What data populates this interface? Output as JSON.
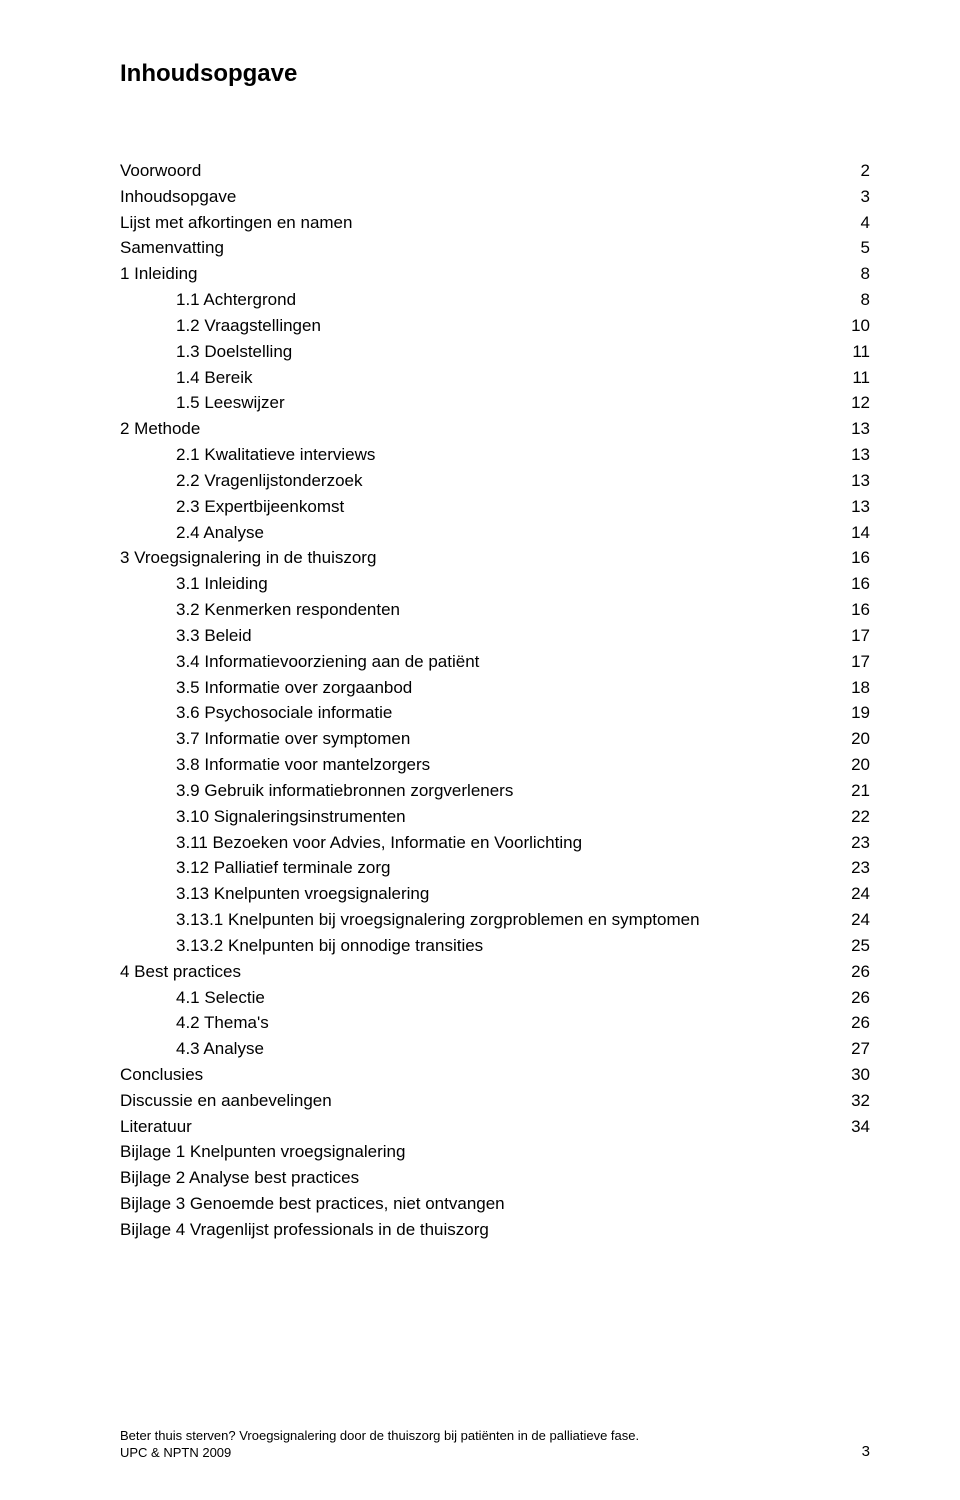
{
  "title": "Inhoudsopgave",
  "toc": [
    {
      "level": 1,
      "label": "Voorwoord",
      "page": "2"
    },
    {
      "level": 1,
      "label": "Inhoudsopgave",
      "page": "3"
    },
    {
      "level": 1,
      "label": "Lijst met afkortingen en namen",
      "page": "4"
    },
    {
      "level": 1,
      "label": "Samenvatting",
      "page": "5"
    },
    {
      "level": 1,
      "label": "1 Inleiding",
      "page": "8"
    },
    {
      "level": 2,
      "label": "1.1 Achtergrond",
      "page": "8"
    },
    {
      "level": 2,
      "label": "1.2 Vraagstellingen",
      "page": "10"
    },
    {
      "level": 2,
      "label": "1.3 Doelstelling",
      "page": "11"
    },
    {
      "level": 2,
      "label": "1.4 Bereik",
      "page": "11"
    },
    {
      "level": 2,
      "label": "1.5 Leeswijzer",
      "page": "12"
    },
    {
      "level": 1,
      "label": "2 Methode",
      "page": "13"
    },
    {
      "level": 2,
      "label": "2.1 Kwalitatieve interviews",
      "page": "13"
    },
    {
      "level": 2,
      "label": "2.2 Vragenlijstonderzoek",
      "page": "13"
    },
    {
      "level": 2,
      "label": "2.3 Expertbijeenkomst",
      "page": "13"
    },
    {
      "level": 2,
      "label": "2.4 Analyse",
      "page": "14"
    },
    {
      "level": 1,
      "label": "3 Vroegsignalering in de thuiszorg",
      "page": "16"
    },
    {
      "level": 2,
      "label": "3.1 Inleiding",
      "page": "16"
    },
    {
      "level": 2,
      "label": "3.2 Kenmerken respondenten",
      "page": "16"
    },
    {
      "level": 2,
      "label": "3.3 Beleid",
      "page": "17"
    },
    {
      "level": 2,
      "label": "3.4 Informatievoorziening aan de patiënt",
      "page": "17"
    },
    {
      "level": 2,
      "label": "3.5 Informatie over zorgaanbod",
      "page": "18"
    },
    {
      "level": 2,
      "label": "3.6 Psychosociale informatie",
      "page": "19"
    },
    {
      "level": 2,
      "label": "3.7 Informatie over symptomen",
      "page": "20"
    },
    {
      "level": 2,
      "label": "3.8 Informatie voor mantelzorgers",
      "page": "20"
    },
    {
      "level": 2,
      "label": "3.9 Gebruik informatiebronnen zorgverleners",
      "page": "21"
    },
    {
      "level": 2,
      "label": "3.10 Signaleringsinstrumenten",
      "page": "22"
    },
    {
      "level": 2,
      "label": "3.11 Bezoeken voor Advies, Informatie en Voorlichting",
      "page": "23"
    },
    {
      "level": 2,
      "label": "3.12 Palliatief terminale zorg",
      "page": "23"
    },
    {
      "level": 2,
      "label": "3.13 Knelpunten vroegsignalering",
      "page": "24"
    },
    {
      "level": 3,
      "label": "3.13.1 Knelpunten bij vroegsignalering zorgproblemen en symptomen",
      "page": "24"
    },
    {
      "level": 3,
      "label": "3.13.2 Knelpunten bij onnodige transities",
      "page": "25"
    },
    {
      "level": 1,
      "label": "4 Best practices",
      "page": "26"
    },
    {
      "level": 2,
      "label": "4.1 Selectie",
      "page": "26"
    },
    {
      "level": 2,
      "label": "4.2 Thema's",
      "page": "26"
    },
    {
      "level": 2,
      "label": "4.3 Analyse",
      "page": "27"
    },
    {
      "level": 1,
      "label": "Conclusies",
      "page": "30"
    },
    {
      "level": 1,
      "label": "Discussie en aanbevelingen",
      "page": "32"
    },
    {
      "level": 1,
      "label": "Literatuur",
      "page": "34"
    },
    {
      "level": 1,
      "label": "Bijlage 1  Knelpunten vroegsignalering",
      "page": ""
    },
    {
      "level": 1,
      "label": "Bijlage 2 Analyse best practices",
      "page": ""
    },
    {
      "level": 1,
      "label": "Bijlage 3 Genoemde best practices, niet ontvangen",
      "page": ""
    },
    {
      "level": 1,
      "label": "Bijlage 4 Vragenlijst professionals in de thuiszorg",
      "page": ""
    }
  ],
  "footer": {
    "line1": "Beter thuis sterven? Vroegsignalering door de thuiszorg bij patiënten in de palliatieve fase.",
    "line2": "UPC & NPTN 2009",
    "page": "3"
  }
}
